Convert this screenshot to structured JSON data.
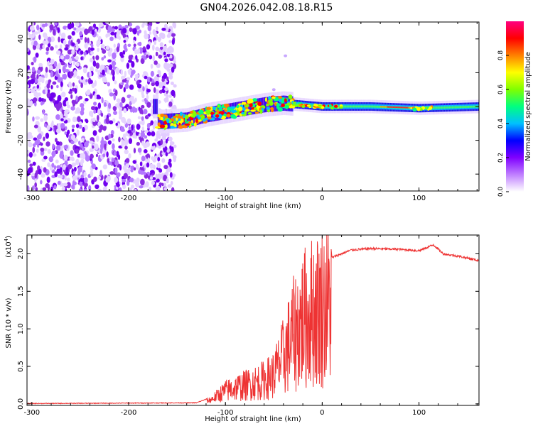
{
  "title": "GN04.2026.042.08.18.R15",
  "chart_data": [
    {
      "type": "heatmap",
      "xlabel": "Height of straight line (km)",
      "ylabel": "Frequency (Hz)",
      "xlim": [
        -305,
        162
      ],
      "ylim": [
        -50,
        50
      ],
      "x_ticks": [
        -300,
        -200,
        -100,
        0,
        100
      ],
      "x_tick_labels": [
        "-300",
        "-200",
        "-100",
        "0",
        "100"
      ],
      "y_ticks": [
        -40,
        -20,
        0,
        20,
        40
      ],
      "y_tick_labels": [
        "-40",
        "-20",
        "0",
        "20",
        "40"
      ],
      "colorbar": {
        "label": "Normalized spectral amplitude",
        "range": [
          0,
          1
        ],
        "ticks": [
          0.0,
          0.2,
          0.4,
          0.6,
          0.8
        ],
        "tick_labels": [
          "0.0",
          "0.2",
          "0.4",
          "0.6",
          "0.8"
        ],
        "colors": [
          "#ffffff",
          "#c080ff",
          "#8000ff",
          "#0000ff",
          "#00c0ff",
          "#00ff80",
          "#80ff00",
          "#ffff00",
          "#ff8000",
          "#ff0000",
          "#ff0080"
        ]
      },
      "features": {
        "noise_region_x": [
          -305,
          -152
        ],
        "ridge_center": [
          [
            -170,
            -9
          ],
          [
            -140,
            -8
          ],
          [
            -120,
            -5
          ],
          [
            -100,
            -3
          ],
          [
            -80,
            -1
          ],
          [
            -60,
            1
          ],
          [
            -40,
            2
          ],
          [
            -20,
            1
          ],
          [
            0,
            0
          ],
          [
            50,
            0
          ],
          [
            100,
            -1
          ],
          [
            162,
            0
          ]
        ],
        "peak_region_x": [
          60,
          95
        ],
        "stray_points": [
          [
            -50,
            10
          ],
          [
            -38,
            30
          ]
        ]
      }
    },
    {
      "type": "line",
      "xlabel": "Height of straight line (km)",
      "ylabel": "SNR (10 * v/v)",
      "y_multiplier": "(x10^4)",
      "y_multiplier_base": "(x10",
      "y_multiplier_exp": "4",
      "xlim": [
        -305,
        162
      ],
      "ylim": [
        -0.02,
        2.25
      ],
      "x_ticks": [
        -300,
        -200,
        -100,
        0,
        100
      ],
      "x_tick_labels": [
        "-300",
        "-200",
        "-100",
        "0",
        "100"
      ],
      "y_ticks": [
        0.0,
        0.5,
        1.0,
        1.5,
        2.0
      ],
      "y_tick_labels": [
        "0.0",
        "0.5",
        "1.0",
        "1.5",
        "2.0"
      ],
      "line_color": "#ee3333",
      "envelope": [
        [
          -305,
          0.0
        ],
        [
          -130,
          0.01
        ],
        [
          -115,
          0.08
        ],
        [
          -100,
          0.25
        ],
        [
          -80,
          0.35
        ],
        [
          -60,
          0.45
        ],
        [
          -50,
          0.55
        ],
        [
          -40,
          0.9
        ],
        [
          -30,
          1.3
        ],
        [
          -20,
          1.6
        ],
        [
          -10,
          1.75
        ],
        [
          0,
          1.85
        ],
        [
          10,
          1.95
        ],
        [
          30,
          2.05
        ],
        [
          50,
          2.07
        ],
        [
          80,
          2.06
        ],
        [
          100,
          2.04
        ],
        [
          115,
          2.12
        ],
        [
          125,
          2.0
        ],
        [
          140,
          1.97
        ],
        [
          162,
          1.91
        ]
      ],
      "noise_band_x": [
        -120,
        10
      ]
    }
  ]
}
